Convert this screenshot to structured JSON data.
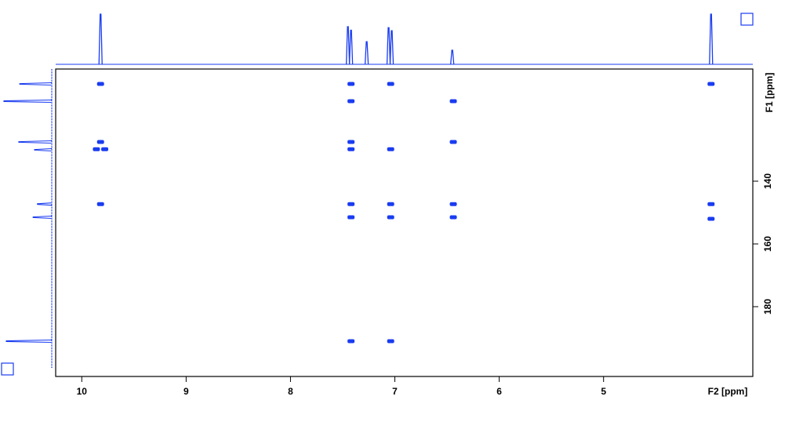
{
  "chart_data": {
    "type": "nmr2d",
    "x_label": "F2 [ppm]",
    "y_label": "F1 [ppm]",
    "xlim": [
      10.25,
      3.57
    ],
    "ylim": [
      104.25,
      202.25
    ],
    "xticks": [
      10,
      9,
      8,
      7,
      6,
      5
    ],
    "yticks": [
      140,
      160,
      180
    ],
    "color": "#1a3cf0",
    "cross_peaks": {
      "f2": [
        9.82,
        7.42,
        7.04,
        3.97,
        7.42,
        6.44,
        9.82,
        9.86,
        9.78,
        7.42,
        7.42,
        7.04,
        6.44,
        9.82,
        7.42,
        7.04,
        6.44,
        3.97,
        7.42,
        7.04,
        6.44,
        3.97,
        7.42,
        7.04
      ],
      "f1": [
        109,
        109,
        109,
        109,
        114.5,
        114.5,
        127.5,
        129.8,
        129.8,
        127.5,
        129.8,
        129.8,
        127.5,
        147.3,
        147.3,
        147.3,
        147.3,
        147.3,
        151.5,
        151.5,
        151.5,
        152,
        191,
        191
      ]
    },
    "f2_projection": {
      "ppm": [
        9.82,
        7.45,
        7.42,
        7.27,
        7.06,
        7.03,
        6.45,
        3.97
      ],
      "intensity": [
        100,
        75,
        68,
        45,
        73,
        67,
        28,
        100
      ]
    },
    "f1_projection": {
      "ppm": [
        109,
        114.5,
        127.5,
        130,
        147.3,
        151.5,
        191
      ],
      "intensity": [
        67,
        100,
        69,
        36,
        30,
        39,
        95
      ]
    }
  }
}
